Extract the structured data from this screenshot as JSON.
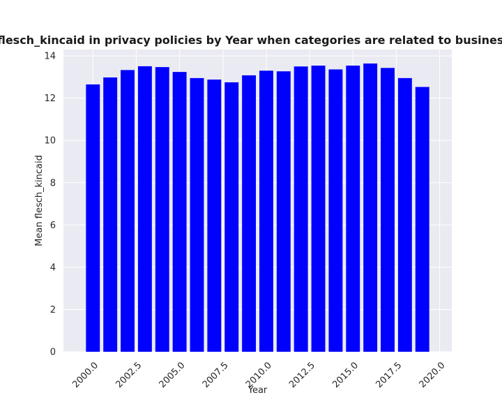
{
  "chart_data": {
    "type": "bar",
    "title": "Mean flesch_kincaid in privacy policies by Year when categories are related to business;games",
    "xlabel": "Year",
    "ylabel": "Mean flesch_kincaid",
    "x": [
      2000,
      2001,
      2002,
      2003,
      2004,
      2005,
      2006,
      2007,
      2008,
      2009,
      2010,
      2011,
      2012,
      2013,
      2014,
      2015,
      2016,
      2017,
      2018,
      2019
    ],
    "values": [
      12.65,
      12.98,
      13.33,
      13.51,
      13.47,
      13.24,
      12.95,
      12.88,
      12.75,
      13.08,
      13.3,
      13.27,
      13.5,
      13.54,
      13.36,
      13.54,
      13.64,
      13.43,
      12.95,
      12.53
    ],
    "xlim": [
      1998.3,
      2020.7
    ],
    "ylim": [
      0,
      14.3
    ],
    "xticks": [
      2000.0,
      2002.5,
      2005.0,
      2007.5,
      2010.0,
      2012.5,
      2015.0,
      2017.5,
      2020.0
    ],
    "xtick_labels": [
      "2000.0",
      "2002.5",
      "2005.0",
      "2007.5",
      "2010.0",
      "2012.5",
      "2015.0",
      "2017.5",
      "2020.0"
    ],
    "yticks": [
      0,
      2,
      4,
      6,
      8,
      10,
      12,
      14
    ],
    "ytick_labels": [
      "0",
      "2",
      "4",
      "6",
      "8",
      "10",
      "12",
      "14"
    ],
    "grid": true,
    "bar_color": "#0000ff",
    "background_color": "#eaeaf2",
    "grid_color": "#ffffff"
  }
}
